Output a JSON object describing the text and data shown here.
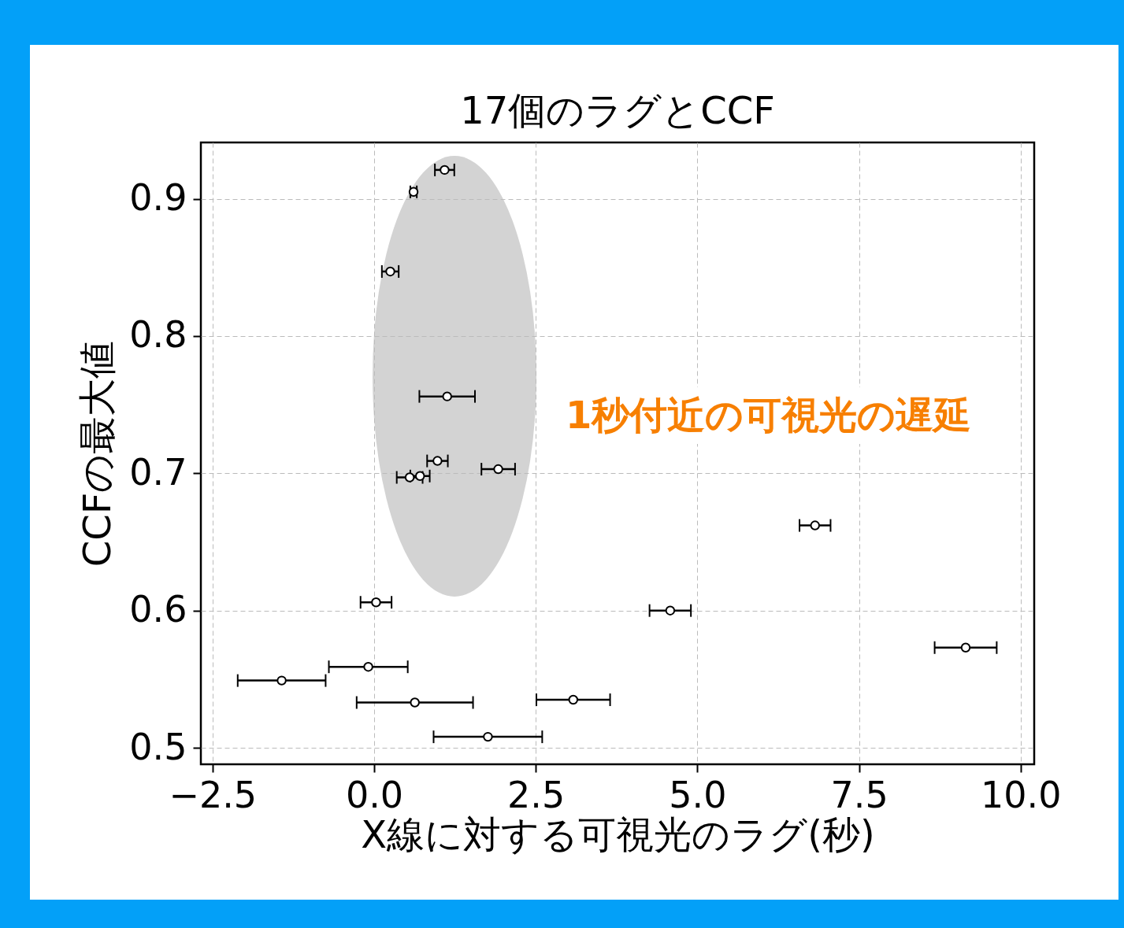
{
  "chart_data": {
    "type": "scatter",
    "title": "17個のラグとCCF",
    "xlabel": "X線に対する可視光のラグ(秒)",
    "ylabel": "CCFの最大値",
    "x": [
      1.09,
      0.61,
      0.25,
      1.13,
      0.98,
      1.92,
      0.55,
      0.71,
      6.82,
      0.03,
      4.58,
      9.15,
      -0.09,
      -1.43,
      0.63,
      3.08,
      1.76
    ],
    "values": [
      0.921,
      0.905,
      0.847,
      0.756,
      0.709,
      0.703,
      0.697,
      0.698,
      0.662,
      0.606,
      0.6,
      0.573,
      0.559,
      0.549,
      0.533,
      0.535,
      0.508
    ],
    "xerrors": [
      0.15,
      0.05,
      0.13,
      0.43,
      0.16,
      0.26,
      0.2,
      0.15,
      0.24,
      0.24,
      0.32,
      0.48,
      0.61,
      0.68,
      0.9,
      0.57,
      0.84
    ],
    "color": "#000000",
    "xlim": [
      -2.68,
      10.21
    ],
    "ylim": [
      0.488,
      0.941
    ],
    "xticks": [
      {
        "value": -2.5,
        "label": "−2.5"
      },
      {
        "value": 0,
        "label": "0.0"
      },
      {
        "value": 2.5,
        "label": "2.5"
      },
      {
        "value": 5,
        "label": "5.0"
      },
      {
        "value": 7.5,
        "label": "7.5"
      },
      {
        "value": 10,
        "label": "10.0"
      }
    ],
    "yticks": [
      0.5,
      0.6,
      0.7,
      0.8,
      0.9
    ],
    "grid": true,
    "marker": "circle",
    "annotations": [
      "1秒付近の可視光の遅延"
    ]
  }
}
